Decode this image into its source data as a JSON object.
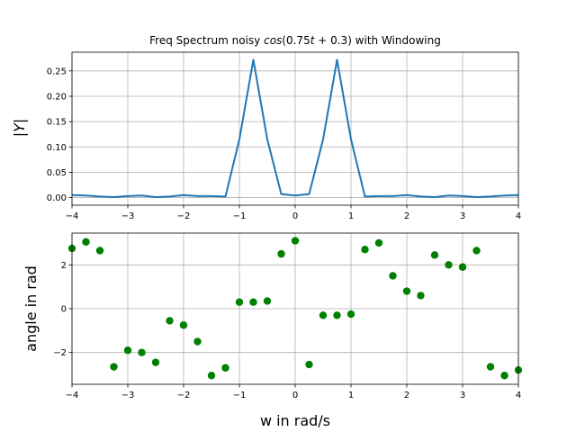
{
  "chart_data": [
    {
      "type": "line",
      "title": "Freq Spectrum noisy cos(0.75t + 0.3) with Windowing",
      "title_parts": [
        "Freq Spectrum noisy ",
        "cos",
        "(0.75",
        "t",
        " + 0.3) with Windowing"
      ],
      "xlabel": "",
      "ylabel": "|Y|",
      "ylabel_parts": [
        "|",
        "Y",
        "|"
      ],
      "xlim": [
        -4,
        4
      ],
      "ylim": [
        -0.015,
        0.287
      ],
      "xticks": [
        -4,
        -3,
        -2,
        -1,
        0,
        1,
        2,
        3,
        4
      ],
      "xtick_labels": [
        "−4",
        "−3",
        "−2",
        "−1",
        "0",
        "1",
        "2",
        "3",
        "4"
      ],
      "yticks": [
        0.0,
        0.05,
        0.1,
        0.15,
        0.2,
        0.25
      ],
      "ytick_labels": [
        "0.00",
        "0.05",
        "0.10",
        "0.15",
        "0.20",
        "0.25"
      ],
      "grid": true,
      "color": "#1f77b4",
      "x": [
        -4.0,
        -3.75,
        -3.5,
        -3.25,
        -3.0,
        -2.75,
        -2.5,
        -2.25,
        -2.0,
        -1.75,
        -1.5,
        -1.25,
        -1.0,
        -0.75,
        -0.5,
        -0.25,
        0.0,
        0.25,
        0.5,
        0.75,
        1.0,
        1.25,
        1.5,
        1.75,
        2.0,
        2.25,
        2.5,
        2.75,
        3.0,
        3.25,
        3.5,
        3.75,
        4.0
      ],
      "y": [
        0.005,
        0.004,
        0.002,
        0.001,
        0.003,
        0.004,
        0.001,
        0.002,
        0.005,
        0.003,
        0.003,
        0.002,
        0.115,
        0.272,
        0.115,
        0.007,
        0.004,
        0.007,
        0.115,
        0.272,
        0.115,
        0.002,
        0.003,
        0.003,
        0.005,
        0.002,
        0.001,
        0.004,
        0.003,
        0.001,
        0.002,
        0.004,
        0.005
      ]
    },
    {
      "type": "scatter",
      "title": "",
      "xlabel": "w in rad/s",
      "ylabel": "angle in rad",
      "xlim": [
        -4,
        4
      ],
      "ylim": [
        -3.45,
        3.45
      ],
      "xticks": [
        -4,
        -3,
        -2,
        -1,
        0,
        1,
        2,
        3,
        4
      ],
      "xtick_labels": [
        "−4",
        "−3",
        "−2",
        "−1",
        "0",
        "1",
        "2",
        "3",
        "4"
      ],
      "yticks": [
        -2,
        0,
        2
      ],
      "ytick_labels": [
        "−2",
        "0",
        "2"
      ],
      "grid": true,
      "color": "#008000",
      "x": [
        -4.0,
        -3.75,
        -3.5,
        -3.25,
        -3.0,
        -2.75,
        -2.5,
        -2.25,
        -2.0,
        -1.75,
        -1.5,
        -1.25,
        -1.0,
        -0.75,
        -0.5,
        -0.25,
        0.0,
        0.25,
        0.5,
        0.75,
        1.0,
        1.25,
        1.5,
        1.75,
        2.0,
        2.25,
        2.5,
        2.75,
        3.0,
        3.25,
        3.5,
        3.75,
        4.0
      ],
      "y": [
        2.75,
        3.05,
        2.65,
        -2.65,
        -1.9,
        -2.0,
        -2.45,
        -0.55,
        -0.75,
        -1.5,
        -3.05,
        -2.7,
        0.3,
        0.3,
        0.35,
        2.5,
        3.1,
        -2.55,
        -0.3,
        -0.3,
        -0.25,
        2.7,
        3.0,
        1.5,
        0.8,
        0.6,
        2.45,
        2.0,
        1.9,
        2.65,
        -2.65,
        -3.05,
        -2.8
      ]
    }
  ]
}
